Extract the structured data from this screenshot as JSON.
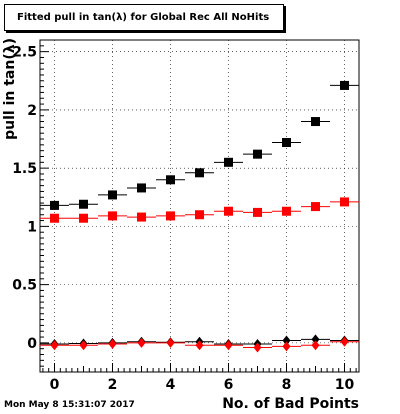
{
  "chart_data": {
    "type": "scatter",
    "title": "Fitted pull in tan(λ) for Global Rec All NoHits",
    "xlabel": "No. of Bad Points",
    "ylabel": "pull in tan(λ)",
    "xlim": [
      -0.5,
      10.5
    ],
    "ylim": [
      -0.25,
      2.6
    ],
    "grid": true,
    "x_ticks": [
      0,
      2,
      4,
      6,
      8,
      10
    ],
    "y_ticks": [
      0,
      0.5,
      1,
      1.5,
      2,
      2.5
    ],
    "series": [
      {
        "marker": "square",
        "color": "#000000",
        "x": [
          0,
          1,
          2,
          3,
          4,
          5,
          6,
          7,
          8,
          9,
          10
        ],
        "y": [
          1.18,
          1.19,
          1.27,
          1.33,
          1.4,
          1.46,
          1.55,
          1.62,
          1.72,
          1.9,
          2.21
        ]
      },
      {
        "marker": "square",
        "color": "#ff0000",
        "x": [
          0,
          1,
          2,
          3,
          4,
          5,
          6,
          7,
          8,
          9,
          10
        ],
        "y": [
          1.07,
          1.07,
          1.09,
          1.08,
          1.09,
          1.1,
          1.13,
          1.12,
          1.13,
          1.17,
          1.21
        ]
      },
      {
        "marker": "diamond",
        "color": "#000000",
        "x": [
          0,
          1,
          2,
          3,
          4,
          5,
          6,
          7,
          8,
          9,
          10
        ],
        "y": [
          -0.01,
          -0.005,
          0.0,
          0.01,
          0.005,
          0.01,
          -0.01,
          -0.01,
          0.02,
          0.03,
          0.02
        ]
      },
      {
        "marker": "diamond",
        "color": "#ff0000",
        "x": [
          0,
          1,
          2,
          3,
          4,
          5,
          6,
          7,
          8,
          9,
          10
        ],
        "y": [
          -0.02,
          -0.02,
          -0.01,
          0.0,
          0.0,
          -0.02,
          -0.02,
          -0.04,
          -0.03,
          -0.02,
          0.01
        ]
      }
    ]
  },
  "footer": {
    "timestamp": "Mon May  8 15:31:07 2017"
  }
}
